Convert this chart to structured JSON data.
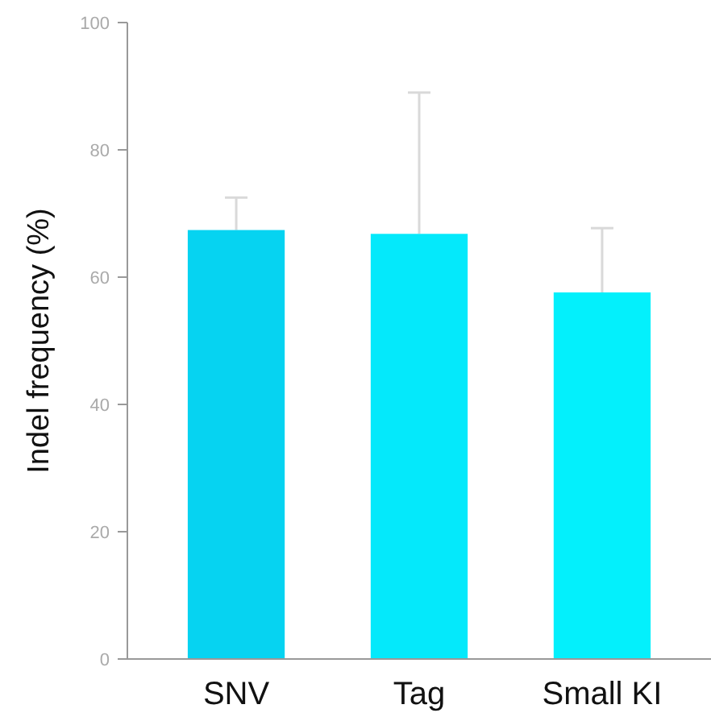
{
  "chart_data": {
    "type": "bar",
    "ylabel": "Indel frequency (%)",
    "categories": [
      "SNV",
      "Tag",
      "Small KI"
    ],
    "values": [
      67.4,
      66.8,
      57.6
    ],
    "colors": [
      "#06d3f1",
      "#04e9fb",
      "#03f0fc"
    ],
    "errors": [
      [
        67.4,
        72.5
      ],
      [
        66.8,
        89.0
      ],
      [
        57.6,
        67.7
      ]
    ],
    "ylim": [
      0,
      100
    ],
    "yticks": [
      0,
      20,
      40,
      60,
      80,
      100
    ],
    "grid": false
  }
}
